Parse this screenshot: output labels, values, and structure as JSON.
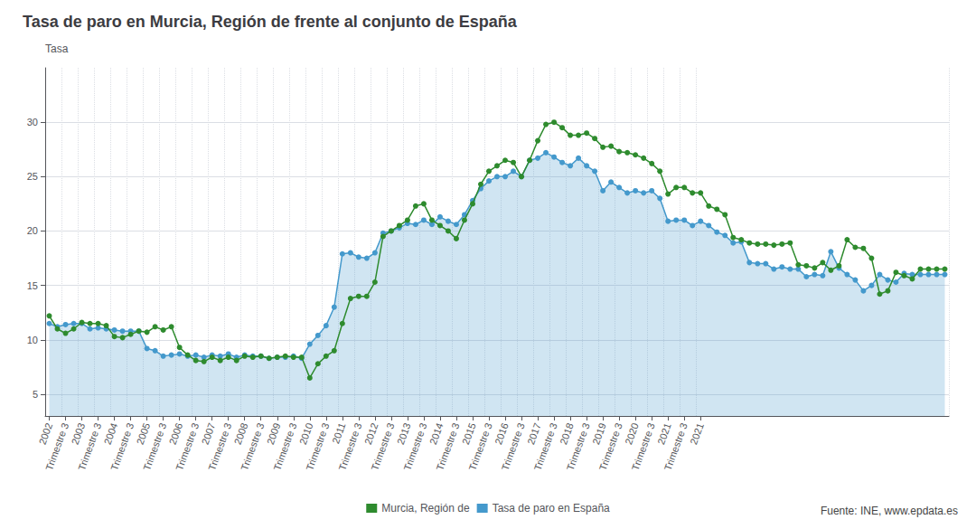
{
  "chart_data": {
    "type": "line",
    "title": "Tasa de paro en Murcia, Región de frente al conjunto de España",
    "ylabel": "Tasa",
    "annotations": [
      "Fuente: INE, www.epdata.es"
    ],
    "categories": [
      "2002",
      null,
      "Trimestre 3",
      null,
      "2003",
      null,
      "Trimestre 3",
      null,
      "2004",
      null,
      "Trimestre 3",
      null,
      "2005",
      null,
      "Trimestre 3",
      null,
      "2006",
      null,
      "Trimestre 3",
      null,
      "2007",
      null,
      "Trimestre 3",
      null,
      "2008",
      null,
      "Trimestre 3",
      null,
      "2009",
      null,
      "Trimestre 3",
      null,
      "2010",
      null,
      "Trimestre 3",
      null,
      "2011",
      null,
      "Trimestre 3",
      null,
      "2012",
      null,
      "Trimestre 3",
      null,
      "2013",
      null,
      "Trimestre 3",
      null,
      "2014",
      null,
      "Trimestre 3",
      null,
      "2015",
      null,
      "Trimestre 3",
      null,
      "2016",
      null,
      "Trimestre 3",
      null,
      "2017",
      null,
      "Trimestre 3",
      null,
      "2018",
      null,
      "Trimestre 3",
      null,
      "2019",
      null,
      "Trimestre 3",
      null,
      "2020",
      null,
      "Trimestre 3",
      null,
      "2021",
      null,
      "Trimestre 3",
      null,
      "2021",
      null,
      null,
      null,
      null,
      null,
      null,
      null,
      null,
      null,
      null,
      null,
      null,
      null,
      null,
      null,
      null,
      null,
      null,
      null,
      null,
      null,
      null,
      null,
      null,
      null,
      null,
      null,
      null,
      null,
      null
    ],
    "series": [
      {
        "name": "Murcia, Región de",
        "type": "line",
        "color": "#2e8b2e",
        "marker": "circle",
        "values": [
          12.2,
          11.0,
          10.6,
          11.0,
          11.6,
          11.5,
          11.5,
          11.3,
          10.3,
          10.2,
          10.5,
          10.8,
          10.7,
          11.2,
          10.9,
          11.2,
          9.3,
          8.6,
          8.1,
          8.0,
          8.4,
          8.1,
          8.4,
          8.1,
          8.5,
          8.4,
          8.5,
          8.3,
          8.4,
          8.5,
          8.4,
          8.4,
          6.5,
          7.8,
          8.5,
          9.0,
          11.5,
          13.8,
          14.0,
          14.0,
          15.3,
          19.5,
          20.0,
          20.5,
          21.0,
          22.3,
          22.5,
          21.0,
          20.5,
          20.0,
          19.3,
          21.0,
          22.5,
          24.3,
          25.5,
          26.0,
          26.5,
          26.3,
          25.0,
          26.5,
          28.3,
          29.8,
          30.0,
          29.5,
          28.8,
          28.8,
          29.0,
          28.5,
          27.7,
          27.8,
          27.3,
          27.2,
          27.0,
          26.7,
          26.2,
          25.5,
          23.4,
          24.0,
          24.0,
          23.5,
          23.5,
          22.3,
          22.0,
          21.5,
          19.4,
          19.2,
          18.9,
          18.8,
          18.8,
          18.7,
          18.8,
          18.9,
          16.9,
          16.8,
          16.6,
          17.1,
          16.4,
          16.8,
          19.2,
          18.5,
          18.4,
          17.5,
          14.2,
          14.5,
          16.2,
          15.9,
          15.6,
          16.5,
          16.5,
          16.5,
          16.5
        ]
      },
      {
        "name": "Tasa de paro en España",
        "type": "area",
        "color": "#4499cc",
        "marker": "circle",
        "values": [
          11.5,
          11.2,
          11.4,
          11.5,
          11.5,
          11.0,
          11.1,
          11.0,
          10.9,
          10.8,
          10.8,
          10.8,
          9.2,
          9.0,
          8.5,
          8.6,
          8.7,
          8.5,
          8.6,
          8.4,
          8.6,
          8.5,
          8.7,
          8.4,
          8.6,
          8.5,
          8.5,
          8.3,
          8.4,
          8.4,
          8.5,
          8.3,
          9.6,
          10.4,
          11.3,
          13.0,
          17.9,
          18.0,
          17.6,
          17.5,
          18.0,
          19.8,
          20.0,
          20.3,
          20.7,
          20.6,
          21.0,
          20.6,
          21.3,
          20.9,
          20.6,
          21.5,
          22.8,
          23.9,
          24.6,
          25.0,
          25.0,
          25.5,
          25.0,
          26.5,
          26.7,
          27.2,
          26.8,
          26.3,
          26.0,
          26.7,
          26.0,
          25.5,
          23.7,
          24.5,
          24.0,
          23.5,
          23.7,
          23.5,
          23.7,
          23.0,
          20.9,
          21.0,
          21.0,
          20.5,
          20.9,
          20.5,
          19.9,
          19.6,
          18.9,
          19.0,
          17.1,
          17.0,
          17.0,
          16.5,
          16.7,
          16.5,
          16.5,
          15.8,
          16.0,
          15.9,
          18.1,
          16.6,
          16.0,
          15.5,
          14.5,
          15.0,
          16.0,
          15.5,
          15.3,
          16.1,
          16.0,
          16.0,
          16.0,
          16.0,
          16.0
        ]
      }
    ],
    "ylim": [
      3,
      35
    ],
    "yticks": [
      5,
      10,
      15,
      20,
      25,
      30
    ],
    "grid": true,
    "legend": "bottom"
  }
}
